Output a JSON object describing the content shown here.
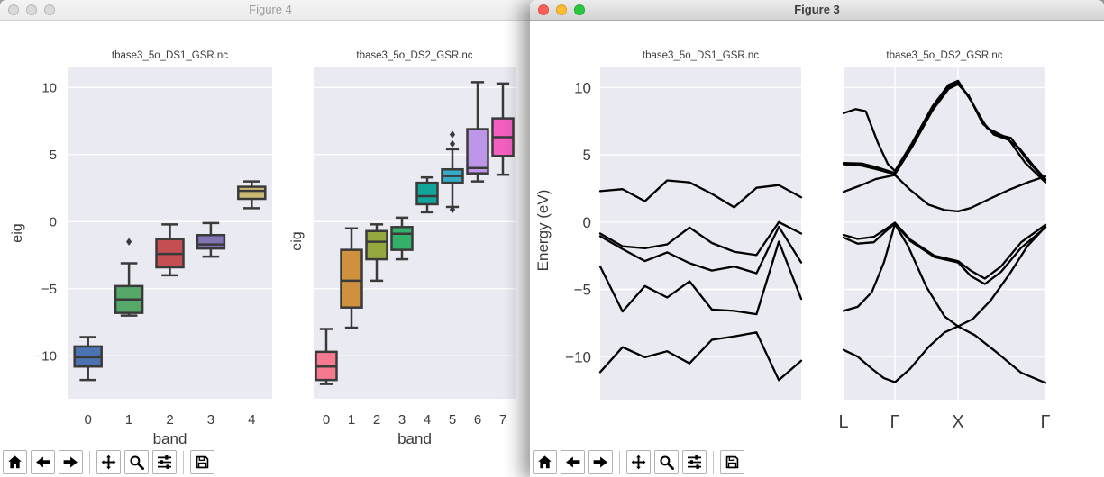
{
  "traffic_lights": {
    "active_colors": [
      "#ff5f57",
      "#febc2e",
      "#28c840"
    ],
    "inactive_color": "#d9d9d9"
  },
  "toolbar": {
    "buttons": [
      "home",
      "back",
      "forward",
      "separator",
      "pan",
      "zoom",
      "configure",
      "separator",
      "save"
    ]
  },
  "plot_style": {
    "axes_bg": "#eaeaf2",
    "grid": "#ffffff",
    "box_edge": "#3a3a3a",
    "band_color": "#000000",
    "text": "#3a3a3a",
    "tick_text": "#3d3d3d"
  },
  "fig4": {
    "window_title": "Figure 4",
    "active": false,
    "ytick_values": [
      10,
      5,
      0,
      -5,
      -10
    ],
    "ytick_labels": [
      "10",
      "5",
      "0",
      "−5",
      "−10"
    ]
  },
  "fig3": {
    "window_title": "Figure 3",
    "active": true,
    "ytick_values": [
      10,
      5,
      0,
      -5,
      -10
    ],
    "ytick_labels": [
      "10",
      "5",
      "0",
      "−5",
      "−10"
    ]
  },
  "chart_data": [
    {
      "type": "box",
      "figure": "Figure 4",
      "title": "tbase3_5o_DS1_GSR.nc",
      "xlabel": "band",
      "ylabel": "eig",
      "ylim": [
        -13.2,
        11.5
      ],
      "grid": "horizontal",
      "xticklabels": [
        "0",
        "1",
        "2",
        "3",
        "4"
      ],
      "boxes": [
        {
          "color": "#4c72b0",
          "whislo": -11.8,
          "q1": -10.8,
          "med": -10.1,
          "q3": -9.3,
          "whishi": -8.6,
          "fliers": []
        },
        {
          "color": "#55a868",
          "whislo": -7.0,
          "q1": -6.8,
          "med": -5.8,
          "q3": -4.8,
          "whishi": -3.1,
          "fliers": [
            -1.5
          ]
        },
        {
          "color": "#c44e52",
          "whislo": -4.0,
          "q1": -3.4,
          "med": -2.4,
          "q3": -1.3,
          "whishi": -0.2,
          "fliers": []
        },
        {
          "color": "#8172b2",
          "whislo": -2.6,
          "q1": -2.0,
          "med": -1.7,
          "q3": -1.0,
          "whishi": -0.1,
          "fliers": []
        },
        {
          "color": "#ccb974",
          "whislo": 1.0,
          "q1": 1.7,
          "med": 2.3,
          "q3": 2.6,
          "whishi": 3.0,
          "fliers": []
        }
      ]
    },
    {
      "type": "box",
      "figure": "Figure 4",
      "title": "tbase3_5o_DS2_GSR.nc",
      "xlabel": "band",
      "ylabel": "eig",
      "ylim": [
        -13.2,
        11.5
      ],
      "grid": "horizontal",
      "xticklabels": [
        "0",
        "1",
        "2",
        "3",
        "4",
        "5",
        "6",
        "7"
      ],
      "boxes": [
        {
          "color": "#f5798f",
          "whislo": -12.1,
          "q1": -11.8,
          "med": -10.8,
          "q3": -9.7,
          "whishi": -8.0,
          "fliers": []
        },
        {
          "color": "#d0913f",
          "whislo": -7.9,
          "q1": -6.4,
          "med": -4.4,
          "q3": -2.1,
          "whishi": -0.5,
          "fliers": []
        },
        {
          "color": "#93a83d",
          "whislo": -4.4,
          "q1": -2.8,
          "med": -1.5,
          "q3": -0.7,
          "whishi": -0.2,
          "fliers": []
        },
        {
          "color": "#33b069",
          "whislo": -2.8,
          "q1": -2.1,
          "med": -0.9,
          "q3": -0.4,
          "whishi": 0.3,
          "fliers": []
        },
        {
          "color": "#12a59a",
          "whislo": 0.7,
          "q1": 1.3,
          "med": 1.9,
          "q3": 2.9,
          "whishi": 3.3,
          "fliers": []
        },
        {
          "color": "#35aac4",
          "whislo": 1.1,
          "q1": 2.9,
          "med": 3.4,
          "q3": 3.9,
          "whishi": 5.4,
          "fliers": [
            6.5,
            5.8,
            0.9
          ]
        },
        {
          "color": "#bd96e8",
          "whislo": 3.0,
          "q1": 3.6,
          "med": 4.0,
          "q3": 6.9,
          "whishi": 10.4,
          "fliers": []
        },
        {
          "color": "#f45fc1",
          "whislo": 3.5,
          "q1": 4.9,
          "med": 6.3,
          "q3": 7.7,
          "whishi": 10.3,
          "fliers": []
        }
      ]
    },
    {
      "type": "line",
      "figure": "Figure 3",
      "title": "tbase3_5o_DS1_GSR.nc",
      "ylabel": "Energy (eV)",
      "ylim": [
        -13.2,
        11.5
      ],
      "grid": "horizontal",
      "bands": [
        [
          -11.15,
          -9.3,
          -10.05,
          -9.6,
          -10.5,
          -8.75,
          -8.5,
          -8.2,
          -11.75,
          -10.3
        ],
        [
          -3.3,
          -6.65,
          -4.75,
          -5.6,
          -4.4,
          -6.5,
          -6.6,
          -6.85,
          -1.45,
          -5.7
        ],
        [
          -1.05,
          -2.0,
          -2.9,
          -2.25,
          -3.05,
          -3.6,
          -3.3,
          -3.8,
          -0.35,
          -3.0
        ],
        [
          -0.85,
          -1.8,
          -1.95,
          -1.65,
          -0.4,
          -1.55,
          -2.2,
          -2.45,
          0.0,
          -0.85
        ],
        [
          2.3,
          2.45,
          1.55,
          3.1,
          2.95,
          2.1,
          1.1,
          2.55,
          2.75,
          1.85
        ]
      ]
    },
    {
      "type": "line",
      "figure": "Figure 3",
      "title": "tbase3_5o_DS2_GSR.nc",
      "ylim": [
        -13.2,
        11.5
      ],
      "grid": "both",
      "kticks": [
        {
          "label": "L",
          "pos": 0
        },
        {
          "label": "Γ",
          "pos": 0.2545
        },
        {
          "label": "X",
          "pos": 0.567
        },
        {
          "label": "Γ",
          "pos": 1
        }
      ],
      "bands_xy": [
        [
          [
            0,
            -9.5
          ],
          [
            0.07,
            -10.0
          ],
          [
            0.14,
            -10.9
          ],
          [
            0.2,
            -11.6
          ],
          [
            0.2545,
            -11.9
          ],
          [
            0.33,
            -10.9
          ],
          [
            0.42,
            -9.3
          ],
          [
            0.5,
            -8.2
          ],
          [
            0.567,
            -7.75
          ],
          [
            0.65,
            -8.4
          ],
          [
            0.76,
            -9.7
          ],
          [
            0.88,
            -11.2
          ],
          [
            1,
            -11.95
          ]
        ],
        [
          [
            0,
            -6.6
          ],
          [
            0.07,
            -6.3
          ],
          [
            0.14,
            -5.2
          ],
          [
            0.2,
            -3.0
          ],
          [
            0.2545,
            -0.15
          ],
          [
            0.32,
            -1.8
          ],
          [
            0.41,
            -4.8
          ],
          [
            0.5,
            -7.0
          ],
          [
            0.567,
            -7.75
          ],
          [
            0.64,
            -7.2
          ],
          [
            0.73,
            -5.8
          ],
          [
            0.82,
            -3.9
          ],
          [
            0.91,
            -1.8
          ],
          [
            1,
            -0.35
          ]
        ],
        [
          [
            0,
            -1.15
          ],
          [
            0.07,
            -1.6
          ],
          [
            0.15,
            -1.5
          ],
          [
            0.2,
            -0.8
          ],
          [
            0.2545,
            -0.1
          ],
          [
            0.33,
            -1.4
          ],
          [
            0.45,
            -2.6
          ],
          [
            0.567,
            -3.0
          ],
          [
            0.63,
            -4.0
          ],
          [
            0.7,
            -4.6
          ],
          [
            0.78,
            -3.7
          ],
          [
            0.88,
            -1.9
          ],
          [
            1,
            -0.4
          ]
        ],
        [
          [
            0,
            -0.95
          ],
          [
            0.07,
            -1.25
          ],
          [
            0.15,
            -1.1
          ],
          [
            0.2,
            -0.6
          ],
          [
            0.2545,
            -0.05
          ],
          [
            0.33,
            -1.3
          ],
          [
            0.45,
            -2.5
          ],
          [
            0.567,
            -2.9
          ],
          [
            0.63,
            -3.6
          ],
          [
            0.7,
            -4.2
          ],
          [
            0.78,
            -3.3
          ],
          [
            0.88,
            -1.5
          ],
          [
            1,
            -0.2
          ]
        ],
        [
          [
            0,
            2.25
          ],
          [
            0.08,
            2.7
          ],
          [
            0.16,
            3.2
          ],
          [
            0.2545,
            3.5
          ],
          [
            0.33,
            2.4
          ],
          [
            0.42,
            1.3
          ],
          [
            0.5,
            0.9
          ],
          [
            0.567,
            0.8
          ],
          [
            0.63,
            1.05
          ],
          [
            0.72,
            1.7
          ],
          [
            0.82,
            2.4
          ],
          [
            0.92,
            3.0
          ],
          [
            1,
            3.4
          ]
        ],
        [
          [
            0,
            4.3
          ],
          [
            0.09,
            4.2
          ],
          [
            0.17,
            3.9
          ],
          [
            0.2545,
            3.55
          ],
          [
            0.34,
            5.6
          ],
          [
            0.44,
            8.3
          ],
          [
            0.52,
            9.9
          ],
          [
            0.567,
            10.25
          ],
          [
            0.62,
            9.4
          ],
          [
            0.68,
            7.6
          ],
          [
            0.745,
            6.5
          ],
          [
            0.82,
            6.1
          ],
          [
            0.9,
            4.4
          ],
          [
            1,
            2.95
          ]
        ],
        [
          [
            0,
            4.4
          ],
          [
            0.09,
            4.35
          ],
          [
            0.17,
            4.05
          ],
          [
            0.2545,
            3.65
          ],
          [
            0.34,
            5.75
          ],
          [
            0.44,
            8.45
          ],
          [
            0.52,
            10.05
          ],
          [
            0.567,
            10.4
          ],
          [
            0.63,
            9.1
          ],
          [
            0.69,
            7.3
          ],
          [
            0.75,
            6.55
          ],
          [
            0.83,
            6.25
          ],
          [
            0.91,
            4.6
          ],
          [
            1,
            3.1
          ]
        ],
        [
          [
            0,
            8.1
          ],
          [
            0.06,
            8.4
          ],
          [
            0.11,
            8.25
          ],
          [
            0.17,
            5.9
          ],
          [
            0.22,
            4.3
          ],
          [
            0.2545,
            3.8
          ],
          [
            0.34,
            5.9
          ],
          [
            0.44,
            8.6
          ],
          [
            0.52,
            10.2
          ],
          [
            0.567,
            10.5
          ],
          [
            0.64,
            8.8
          ],
          [
            0.71,
            7.0
          ],
          [
            0.79,
            6.4
          ],
          [
            0.87,
            5.5
          ],
          [
            0.94,
            4.2
          ],
          [
            1,
            3.2
          ]
        ]
      ]
    }
  ]
}
